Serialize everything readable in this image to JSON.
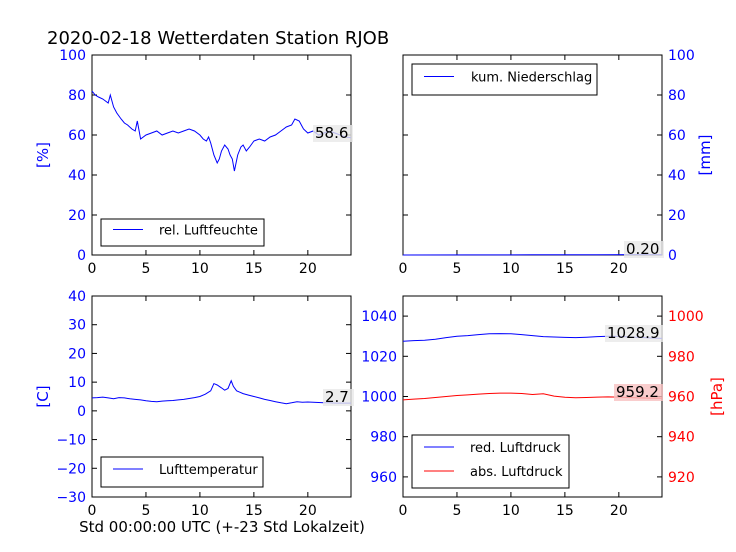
{
  "title": "2020-02-18 Wetterdaten Station RJOB",
  "xlabel": "Std 00:00:00 UTC (+-23 Std Lokalzeit)",
  "colors": {
    "blue": "#0000ff",
    "red": "#ff0000",
    "red_bg": "#f7c0c0",
    "label_bg": "#e8e8e8"
  },
  "chart_data": [
    {
      "type": "line",
      "id": "humidity",
      "xlim": [
        0,
        24
      ],
      "ylim": [
        0,
        100
      ],
      "xticks": [
        0,
        5,
        10,
        15,
        20
      ],
      "yticks": [
        0,
        20,
        40,
        60,
        80,
        100
      ],
      "ylabel": "[%]",
      "ylabel_side": "left",
      "legend_position": "lower-left",
      "last_value_label": "58.6",
      "series": [
        {
          "name": "rel. Luftfeuchte",
          "color": "#0000ff",
          "x": [
            0,
            0.3,
            0.6,
            1.0,
            1.5,
            1.7,
            2.0,
            2.3,
            2.7,
            3.0,
            3.3,
            3.7,
            4.0,
            4.2,
            4.5,
            5.0,
            5.5,
            6.0,
            6.5,
            7.0,
            7.5,
            8.0,
            8.5,
            9.0,
            9.5,
            10.0,
            10.3,
            10.6,
            10.8,
            11.0,
            11.3,
            11.6,
            11.8,
            12.0,
            12.3,
            12.6,
            12.8,
            13.0,
            13.2,
            13.5,
            13.8,
            14.0,
            14.3,
            14.6,
            15.0,
            15.5,
            16.0,
            16.5,
            17.0,
            17.5,
            18.0,
            18.5,
            18.8,
            19.2,
            19.6,
            20.0,
            20.5,
            21.0,
            21.5,
            22.0,
            22.5,
            23.0,
            23.5,
            24.0
          ],
          "y": [
            82,
            80,
            79,
            78,
            76,
            80,
            74,
            71,
            68,
            66,
            65,
            63,
            62,
            67,
            58,
            60,
            61,
            62,
            60,
            61,
            62,
            61,
            62,
            63,
            62,
            60,
            58,
            57,
            59,
            56,
            50,
            46,
            48,
            52,
            55,
            53,
            50,
            48,
            42,
            50,
            54,
            55,
            52,
            54,
            57,
            58,
            57,
            59,
            60,
            62,
            64,
            65,
            68,
            67,
            63,
            61,
            62,
            60,
            61,
            62,
            61,
            60,
            59,
            58.6
          ]
        }
      ]
    },
    {
      "type": "line",
      "id": "precipitation",
      "xlim": [
        0,
        24
      ],
      "ylim": [
        0,
        100
      ],
      "xticks": [
        0,
        5,
        10,
        15,
        20
      ],
      "yticks": [
        0,
        20,
        40,
        60,
        80,
        100
      ],
      "ylabel": "[mm]",
      "ylabel_side": "right",
      "legend_position": "upper-left",
      "last_value_label": "0.20",
      "series": [
        {
          "name": "kum. Niederschlag",
          "color": "#0000ff",
          "x": [
            0,
            6,
            12,
            18,
            24
          ],
          "y": [
            0,
            0.05,
            0.1,
            0.15,
            0.2
          ]
        }
      ]
    },
    {
      "type": "line",
      "id": "temperature",
      "xlim": [
        0,
        24
      ],
      "ylim": [
        -30,
        40
      ],
      "xticks": [
        0,
        5,
        10,
        15,
        20
      ],
      "yticks": [
        -30,
        -20,
        -10,
        0,
        10,
        20,
        30,
        40
      ],
      "ylabel": "[C]",
      "ylabel_side": "left",
      "legend_position": "lower-left",
      "last_value_label": "2.7",
      "series": [
        {
          "name": "Lufttemperatur",
          "color": "#0000ff",
          "x": [
            0,
            0.5,
            1.0,
            1.5,
            2.0,
            2.5,
            3.0,
            3.5,
            4.0,
            4.5,
            5.0,
            5.5,
            6.0,
            6.5,
            7.0,
            7.5,
            8.0,
            8.5,
            9.0,
            9.5,
            10.0,
            10.5,
            11.0,
            11.3,
            11.6,
            12.0,
            12.3,
            12.6,
            12.9,
            13.1,
            13.4,
            13.7,
            14.0,
            14.5,
            15.0,
            15.5,
            16.0,
            16.5,
            17.0,
            17.5,
            18.0,
            18.5,
            19.0,
            19.5,
            20.0,
            20.5,
            21.0,
            21.5,
            22.0,
            22.5,
            23.0,
            23.5,
            24.0
          ],
          "y": [
            4.5,
            4.6,
            4.8,
            4.5,
            4.2,
            4.6,
            4.5,
            4.2,
            4.0,
            3.8,
            3.5,
            3.3,
            3.2,
            3.4,
            3.5,
            3.6,
            3.8,
            4.0,
            4.3,
            4.6,
            5.0,
            5.8,
            7.0,
            9.5,
            9.0,
            8.0,
            7.2,
            7.8,
            10.5,
            8.5,
            7.0,
            6.5,
            6.0,
            5.5,
            5.0,
            4.5,
            4.0,
            3.6,
            3.2,
            2.8,
            2.5,
            2.8,
            3.2,
            3.0,
            3.1,
            3.0,
            2.9,
            2.8,
            2.8,
            2.7,
            2.7,
            2.7,
            2.7
          ]
        }
      ]
    },
    {
      "type": "line",
      "id": "pressure",
      "xlim": [
        0,
        24
      ],
      "ylim_left": [
        950,
        1050
      ],
      "ylim_right": [
        910,
        1010
      ],
      "xticks": [
        0,
        5,
        10,
        15,
        20
      ],
      "yticks_left": [
        960,
        980,
        1000,
        1020,
        1040
      ],
      "yticks_right": [
        920,
        940,
        960,
        980,
        1000
      ],
      "ylabel": "[hPa]",
      "ylabel_side": "right",
      "legend_position": "lower-left",
      "series": [
        {
          "name": "red. Luftdruck",
          "color": "#0000ff",
          "axis": "left",
          "last_value_label": "1028.9",
          "x": [
            0,
            1,
            2,
            3,
            4,
            5,
            6,
            7,
            8,
            9,
            10,
            11,
            12,
            13,
            14,
            15,
            16,
            17,
            18,
            19,
            20,
            21,
            22,
            23,
            24
          ],
          "y": [
            1027.5,
            1027.8,
            1028.0,
            1028.5,
            1029.3,
            1030.0,
            1030.3,
            1030.8,
            1031.2,
            1031.3,
            1031.2,
            1030.8,
            1030.3,
            1029.8,
            1029.6,
            1029.4,
            1029.3,
            1029.5,
            1029.8,
            1030.0,
            1029.9,
            1029.6,
            1029.4,
            1029.1,
            1028.9
          ]
        },
        {
          "name": "abs. Luftdruck",
          "color": "#ff0000",
          "axis": "right",
          "last_value_label": "959.2",
          "x": [
            0,
            1,
            2,
            3,
            4,
            5,
            6,
            7,
            8,
            9,
            10,
            11,
            12,
            13,
            14,
            15,
            16,
            17,
            18,
            19,
            20,
            21,
            22,
            23,
            24
          ],
          "y": [
            958.3,
            958.7,
            959.0,
            959.5,
            960.0,
            960.5,
            960.8,
            961.2,
            961.5,
            961.7,
            961.7,
            961.5,
            961.0,
            961.4,
            960.2,
            959.6,
            959.4,
            959.5,
            959.7,
            959.8,
            959.7,
            959.5,
            959.3,
            959.2,
            959.2
          ]
        }
      ]
    }
  ]
}
